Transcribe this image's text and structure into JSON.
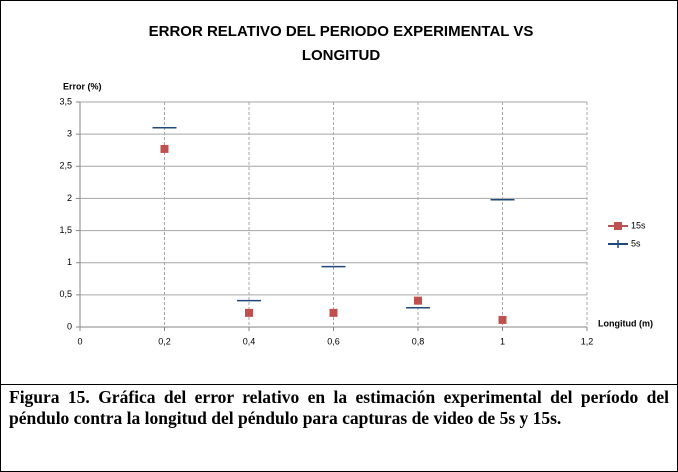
{
  "chart_data": {
    "type": "scatter",
    "title": [
      "ERROR RELATIVO DEL PERIODO EXPERIMENTAL VS",
      "LONGITUD"
    ],
    "y_label": "Error (%)",
    "x_label": "Longitud (m)",
    "x": [
      0.2,
      0.4,
      0.6,
      0.8,
      1.0
    ],
    "series": [
      {
        "name": "15s",
        "color": "#c0504d",
        "marker": "square",
        "values": [
          2.77,
          0.22,
          0.22,
          0.41,
          0.11
        ]
      },
      {
        "name": "5s",
        "color": "#1f497d",
        "marker": "dash",
        "values": [
          3.1,
          0.41,
          0.94,
          0.3,
          1.98
        ]
      }
    ],
    "xlim": [
      0,
      1.2
    ],
    "xticks": [
      0,
      {
        "value": 0.2,
        "label": "0,2"
      },
      {
        "value": 0.4,
        "label": "0,4"
      },
      {
        "value": 0.6,
        "label": "0,6"
      },
      {
        "value": 0.8,
        "label": "0,8"
      },
      1,
      {
        "value": 1.2,
        "label": "1,2"
      }
    ],
    "ylim": [
      0,
      3.5
    ],
    "yticks": [
      0,
      {
        "value": 0.5,
        "label": "0,5"
      },
      1,
      {
        "value": 1.5,
        "label": "1,5"
      },
      2,
      {
        "value": 2.5,
        "label": "2,5"
      },
      3,
      {
        "value": 3.5,
        "label": "3,5"
      }
    ],
    "grid": true,
    "legend": "right"
  },
  "caption": "Figura 15. Gráfica del error relativo en la estimación experimental  del período del péndulo contra la longitud del péndulo para capturas de video de 5s y 15s."
}
